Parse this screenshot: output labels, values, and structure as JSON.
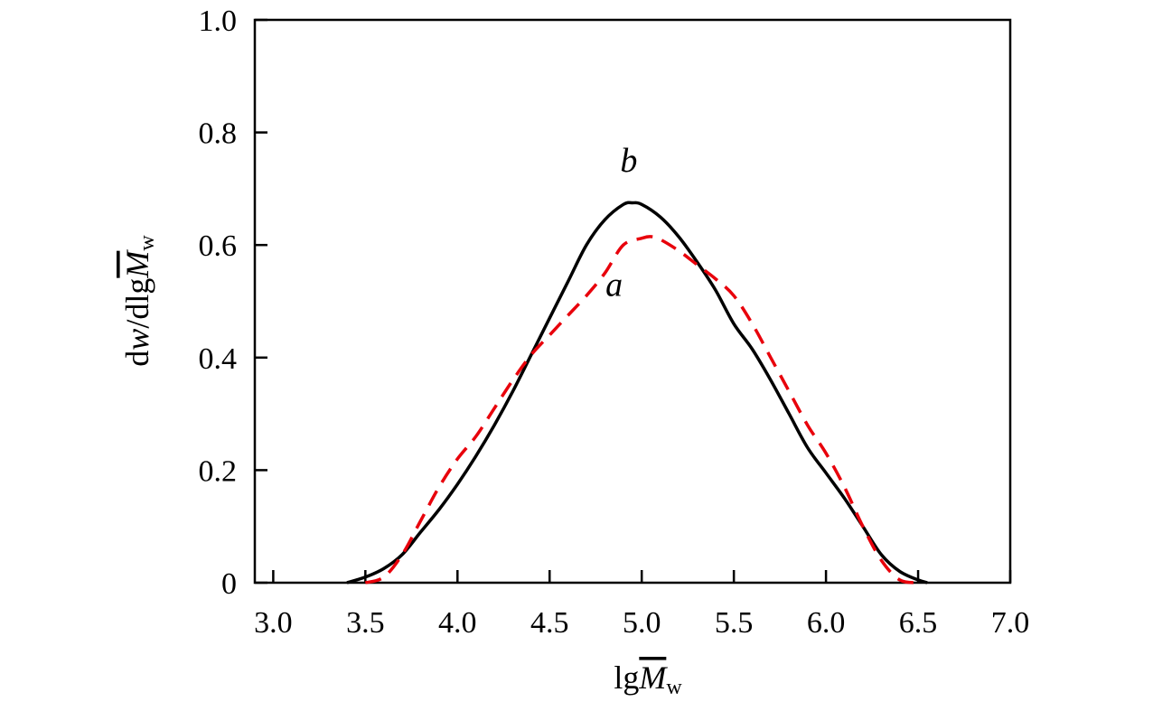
{
  "chart_data": {
    "type": "line",
    "xlabel": {
      "prefix": "lg",
      "symbol": "M",
      "subscript": "w"
    },
    "ylabel": {
      "d1": "d",
      "w": "w",
      "mid": "/dlg",
      "symbol": "M",
      "subscript": "w"
    },
    "xlim": [
      2.9,
      7.0
    ],
    "ylim": [
      0,
      1.0
    ],
    "x_ticks": [
      3.0,
      3.5,
      4.0,
      4.5,
      5.0,
      5.5,
      6.0,
      6.5,
      7.0
    ],
    "x_tick_labels": [
      "3.0",
      "3.5",
      "4.0",
      "4.5",
      "5.0",
      "5.5",
      "6.0",
      "6.5",
      "7.0"
    ],
    "y_ticks": [
      0,
      0.2,
      0.4,
      0.6,
      0.8,
      1.0
    ],
    "y_tick_labels": [
      "0",
      "0.2",
      "0.4",
      "0.6",
      "0.8",
      "1.0"
    ],
    "grid": false,
    "series": [
      {
        "name": "b",
        "color": "#000000",
        "style": "solid",
        "x": [
          3.4,
          3.5,
          3.6,
          3.7,
          3.8,
          3.9,
          4.0,
          4.1,
          4.2,
          4.3,
          4.4,
          4.5,
          4.6,
          4.7,
          4.8,
          4.9,
          4.95,
          5.0,
          5.1,
          5.2,
          5.3,
          5.4,
          5.5,
          5.6,
          5.7,
          5.8,
          5.9,
          6.0,
          6.1,
          6.2,
          6.3,
          6.4,
          6.5,
          6.55
        ],
        "y": [
          0.0,
          0.01,
          0.025,
          0.05,
          0.09,
          0.13,
          0.175,
          0.225,
          0.28,
          0.34,
          0.405,
          0.47,
          0.535,
          0.6,
          0.645,
          0.672,
          0.675,
          0.672,
          0.65,
          0.615,
          0.57,
          0.52,
          0.46,
          0.415,
          0.36,
          0.3,
          0.24,
          0.195,
          0.15,
          0.1,
          0.05,
          0.02,
          0.005,
          0.0
        ]
      },
      {
        "name": "a",
        "color": "#e8000b",
        "style": "dashed",
        "x": [
          3.5,
          3.6,
          3.7,
          3.8,
          3.9,
          4.0,
          4.1,
          4.2,
          4.3,
          4.4,
          4.5,
          4.6,
          4.7,
          4.8,
          4.9,
          5.0,
          5.05,
          5.1,
          5.2,
          5.3,
          5.4,
          5.5,
          5.6,
          5.7,
          5.8,
          5.9,
          6.0,
          6.1,
          6.2,
          6.3,
          6.4,
          6.5
        ],
        "y": [
          0.0,
          0.01,
          0.05,
          0.11,
          0.17,
          0.22,
          0.26,
          0.31,
          0.36,
          0.405,
          0.44,
          0.475,
          0.51,
          0.55,
          0.6,
          0.612,
          0.615,
          0.61,
          0.59,
          0.565,
          0.54,
          0.51,
          0.46,
          0.4,
          0.34,
          0.28,
          0.23,
          0.17,
          0.1,
          0.04,
          0.005,
          0.0
        ]
      }
    ],
    "annotations": [
      {
        "text": "b",
        "x": 4.93,
        "y": 0.73
      },
      {
        "text": "a",
        "x": 4.85,
        "y": 0.51
      }
    ]
  }
}
